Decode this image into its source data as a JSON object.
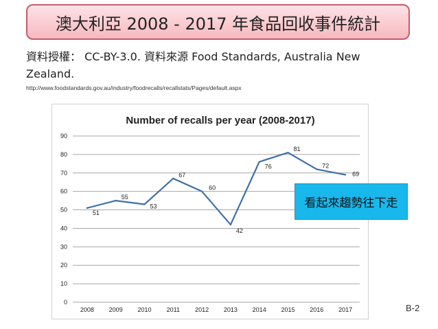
{
  "header": {
    "title": "澳大利亞  2008 - 2017  年食品回收事件統計"
  },
  "license": {
    "text": "資料授權： CC-BY-3.0.  資料來源  Food Standards, Australia New Zealand.",
    "url": "http://www.foodstandards.gov.au/industry/foodrecalls/recallstats/Pages/default.aspx"
  },
  "callout": {
    "text": "看起來趨勢往下走"
  },
  "page_number": "B-2",
  "chart_data": {
    "type": "line",
    "title": "Number of recalls per year (2008-2017)",
    "xlabel": "",
    "ylabel": "",
    "categories": [
      "2008",
      "2009",
      "2010",
      "2011",
      "2012",
      "2013",
      "2014",
      "2015",
      "2016",
      "2017"
    ],
    "values": [
      51,
      55,
      53,
      67,
      60,
      42,
      76,
      81,
      72,
      69
    ],
    "ylim": [
      0,
      90
    ],
    "yticks": [
      0,
      10,
      20,
      30,
      40,
      50,
      60,
      70,
      80,
      90
    ],
    "grid": true,
    "legend": "none",
    "colors": {
      "line": "#3e6fa8",
      "grid": "#a6a6a6",
      "title": "#222222",
      "labels": "#222222"
    }
  }
}
